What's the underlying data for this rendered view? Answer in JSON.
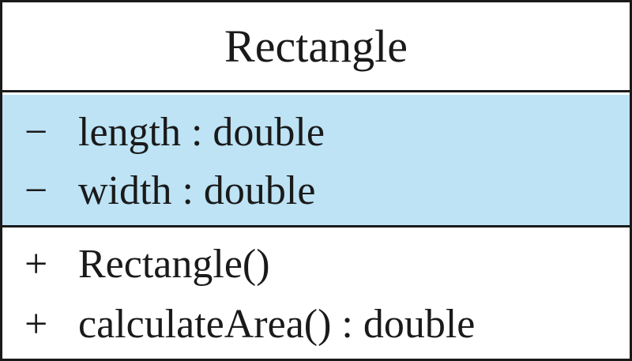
{
  "class": {
    "name": "Rectangle",
    "attributes": [
      {
        "visibility": "−",
        "text": "length : double"
      },
      {
        "visibility": "−",
        "text": "width : double"
      }
    ],
    "operations": [
      {
        "visibility": "+",
        "text": "Rectangle()"
      },
      {
        "visibility": "+",
        "text": "calculateArea() : double"
      }
    ]
  },
  "colors": {
    "attributes_background": "#bde3f5",
    "border": "#1a1a1a"
  }
}
